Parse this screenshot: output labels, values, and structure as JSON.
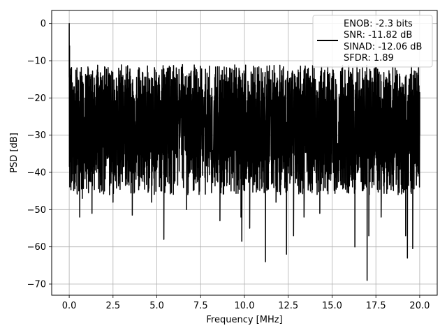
{
  "chart_data": {
    "type": "line",
    "title": "",
    "xlabel": "Frequency [MHz]",
    "ylabel": "PSD [dB]",
    "xlim": [
      -1,
      21
    ],
    "ylim": [
      -73,
      3.5
    ],
    "xticks": [
      0.0,
      2.5,
      5.0,
      7.5,
      10.0,
      12.5,
      15.0,
      17.5,
      20.0
    ],
    "xtick_labels": [
      "0.0",
      "2.5",
      "5.0",
      "7.5",
      "10.0",
      "12.5",
      "15.0",
      "17.5",
      "20.0"
    ],
    "yticks": [
      0,
      -10,
      -20,
      -30,
      -40,
      -50,
      -60,
      -70
    ],
    "ytick_labels": [
      "0",
      "−10",
      "−20",
      "−30",
      "−40",
      "−50",
      "−60",
      "−70"
    ],
    "grid": true,
    "legend_position": "top-right",
    "series": [
      {
        "name": "ENOB: -2.3 bits\nSNR: -11.82 dB\nSINAD: -12.06 dB\nSFDR: 1.89",
        "color": "#000000",
        "x_range": [
          0,
          20
        ],
        "noise_floor_mean": -29,
        "noise_upper_typical": -17,
        "noise_lower_typical": -42,
        "points": [
          [
            0.0,
            0.0
          ],
          [
            0.02,
            -6
          ],
          [
            0.05,
            -22
          ],
          [
            0.1,
            -12
          ],
          [
            0.15,
            -27
          ],
          [
            0.2,
            -18
          ],
          [
            0.3,
            -42.5
          ],
          [
            0.45,
            -45.5
          ],
          [
            0.6,
            -52
          ],
          [
            0.75,
            -47
          ],
          [
            1.3,
            -51
          ],
          [
            2.0,
            -18
          ],
          [
            2.3,
            -46
          ],
          [
            2.5,
            -48
          ],
          [
            3.6,
            -51.5
          ],
          [
            4.7,
            -48
          ],
          [
            5.4,
            -58
          ],
          [
            6.7,
            -50
          ],
          [
            8.6,
            -53
          ],
          [
            9.8,
            -52
          ],
          [
            9.85,
            -58.5
          ],
          [
            10.0,
            -13.5
          ],
          [
            10.3,
            -55
          ],
          [
            11.2,
            -64
          ],
          [
            11.8,
            -48
          ],
          [
            12.4,
            -62
          ],
          [
            12.8,
            -57
          ],
          [
            13.4,
            -52
          ],
          [
            14.3,
            -51
          ],
          [
            15.2,
            -15
          ],
          [
            16.3,
            -60
          ],
          [
            16.7,
            -20
          ],
          [
            17.0,
            -69
          ],
          [
            17.1,
            -57
          ],
          [
            17.8,
            -52
          ],
          [
            18.2,
            -16
          ],
          [
            19.2,
            -57
          ],
          [
            19.3,
            -63
          ],
          [
            19.6,
            -60.5
          ],
          [
            19.9,
            -41
          ],
          [
            20.0,
            -30
          ]
        ]
      }
    ],
    "legend": [
      {
        "lines": [
          "ENOB: -2.3 bits",
          "SNR: -11.82 dB",
          "SINAD: -12.06 dB",
          "SFDR: 1.89"
        ],
        "color": "#000000"
      }
    ]
  }
}
